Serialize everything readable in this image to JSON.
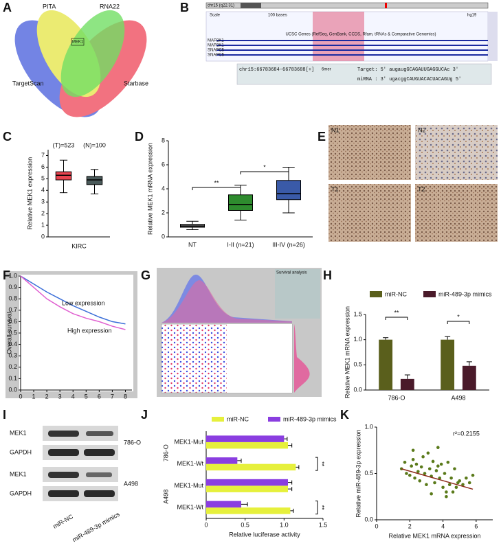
{
  "panel_labels": [
    "A",
    "B",
    "C",
    "D",
    "E",
    "F",
    "G",
    "H",
    "I",
    "J",
    "K"
  ],
  "venn": {
    "labels": [
      "PITA",
      "RNA22",
      "TargetScan",
      "Starbase"
    ],
    "highlight": "MEK1"
  },
  "genome": {
    "band": "chr15 (q22.31)",
    "scale": "Scale",
    "span": "100 bases",
    "assembly": "hg19",
    "track": "UCSC Genes (RefSeq, GenBank, CCDS, Rfam, tRNAs & Comparative Genomics)",
    "genes": [
      "MAP2K1",
      "MAP2K1",
      "SNAPC5",
      "SNAPC5"
    ],
    "site": "chr15:66783684-66783688[+]",
    "seed": "6mer",
    "target": "Target: 5' augaugGCAGAUUGAGGUCAc 3'",
    "mirna": "miRNA : 3' ugacggCAUGUACACUACAGUg 5'"
  },
  "ihc": {
    "labels": [
      "N1",
      "N2",
      "T1",
      "T2"
    ]
  },
  "survival_panel": {
    "title": "Survival analysis"
  },
  "western": {
    "proteins": [
      "MEK1",
      "GAPDH",
      "MEK1",
      "GAPDH"
    ],
    "cell_lines": [
      "786-O",
      "A498"
    ],
    "lanes": [
      "miR-NC",
      "miR-489-3p mimics"
    ]
  },
  "chart_data": [
    {
      "type": "box",
      "categories": [
        "(T)=523",
        "(N)=100"
      ],
      "category_labels": "top",
      "xlabel": "KIRC",
      "ylabel": "Relative MEK1 expression",
      "colors": [
        "#e8434f",
        "#4a5a5a"
      ],
      "boxes": [
        {
          "min": 3.8,
          "q1": 4.9,
          "median": 5.3,
          "q3": 5.6,
          "max": 6.6
        },
        {
          "min": 3.7,
          "q1": 4.5,
          "median": 4.9,
          "q3": 5.2,
          "max": 5.8
        }
      ],
      "ylim": [
        0,
        7.5
      ],
      "yticks": [
        0,
        1,
        2,
        3,
        4,
        5,
        6,
        7
      ]
    },
    {
      "type": "box",
      "categories": [
        "NT",
        "I-II (n=21)",
        "III-IV (n=26)"
      ],
      "category_labels": "bottom",
      "ylabel": "Relative MEK1 mRNA expression",
      "colors": [
        "#7f7f7f",
        "#2e8b2e",
        "#3a5aa8"
      ],
      "boxes": [
        {
          "min": 0.6,
          "q1": 0.8,
          "median": 0.9,
          "q3": 1.05,
          "max": 1.3
        },
        {
          "min": 1.4,
          "q1": 2.2,
          "median": 2.7,
          "q3": 3.5,
          "max": 4.3
        },
        {
          "min": 2.0,
          "q1": 3.1,
          "median": 3.6,
          "q3": 4.7,
          "max": 5.8
        }
      ],
      "annotations": [
        "**",
        "*"
      ],
      "ylim": [
        0,
        8
      ],
      "yticks": [
        0,
        2,
        4,
        6,
        8
      ]
    },
    {
      "type": "line",
      "ylabel": "Overall survival",
      "x": [
        0,
        1,
        2,
        3,
        4,
        5,
        6,
        7,
        8
      ],
      "series": [
        {
          "name": "Low expression",
          "color": "#3a6ed8",
          "values": [
            1,
            0.93,
            0.86,
            0.8,
            0.74,
            0.69,
            0.64,
            0.6,
            0.58
          ]
        },
        {
          "name": "High expression",
          "color": "#e060d0",
          "values": [
            1,
            0.9,
            0.8,
            0.73,
            0.67,
            0.63,
            0.6,
            0.56,
            0.53
          ]
        }
      ],
      "legend": "inline",
      "xlim": [
        0,
        8.5
      ],
      "xticks": [
        0,
        1,
        2,
        3,
        4,
        5,
        6,
        7,
        8
      ],
      "ylim": [
        0,
        1
      ],
      "yticks": [
        {
          "value": 0,
          "label": "0.0"
        },
        0.1,
        0.2,
        0.3,
        0.4,
        0.5,
        0.6,
        0.7,
        0.8,
        0.9,
        {
          "value": 1,
          "label": "1.0"
        }
      ]
    },
    {
      "type": "bar",
      "categories": [
        "786-O",
        "A498"
      ],
      "ylabel": "Relative MEK1 mRNA expression",
      "series": [
        {
          "name": "miR-NC",
          "color": "#5a5f1c",
          "values": [
            1.0,
            1.0
          ],
          "errors": [
            0.04,
            0.06
          ]
        },
        {
          "name": "miR-489-3p mimics",
          "color": "#4a1a2a",
          "values": [
            0.22,
            0.48
          ],
          "errors": [
            0.08,
            0.08
          ]
        }
      ],
      "annotations": [
        "**",
        "*"
      ],
      "legend": "top",
      "ylim": [
        0,
        1.5
      ],
      "yticks": [
        {
          "value": 0,
          "label": "0.0"
        },
        0.5,
        {
          "value": 1,
          "label": "1.0"
        },
        1.5
      ]
    },
    {
      "type": "hbar",
      "categories": [
        "MEK1-Mut",
        "MEK1-Wt",
        "MEK1-Mut",
        "MEK1-Wt"
      ],
      "groups": [
        "786-O",
        "A498"
      ],
      "xlabel": "Relative luciferase activity",
      "series": [
        {
          "name": "miR-NC",
          "color": "#e6f03c",
          "values": [
            1.05,
            1.15,
            1.05,
            1.08
          ],
          "errors": [
            0.05,
            0.04,
            0.05,
            0.04
          ]
        },
        {
          "name": "miR-489-3p mimics",
          "color": "#8a3ee0",
          "values": [
            1.0,
            0.4,
            1.05,
            0.45
          ],
          "errors": [
            0.04,
            0.05,
            0.05,
            0.08
          ]
        }
      ],
      "annotations": [
        "**",
        "**"
      ],
      "legend": "top",
      "xlim": [
        0,
        1.5
      ],
      "xticks": [
        0,
        0.5,
        {
          "value": 1,
          "label": "1.0"
        },
        1.5
      ]
    },
    {
      "type": "scatter",
      "xlabel": "Relative MEK1 mRNA expression",
      "ylabel": "Relative miR-489-3p expression",
      "color": "#5a7a1a",
      "fit_color": "#8b2a1a",
      "annotation": "r²=0.2155",
      "x": [
        1.5,
        1.7,
        1.8,
        2.0,
        2.1,
        2.2,
        2.3,
        2.4,
        2.5,
        2.6,
        2.7,
        2.8,
        2.9,
        3.0,
        3.1,
        3.2,
        3.3,
        3.4,
        3.5,
        3.6,
        3.7,
        3.8,
        3.9,
        4.0,
        4.1,
        4.2,
        4.3,
        4.4,
        4.5,
        4.6,
        4.7,
        4.8,
        4.9,
        5.0,
        5.2,
        5.4,
        5.6,
        5.8,
        2.2,
        3.3,
        3.7,
        4.2
      ],
      "values": [
        0.55,
        0.62,
        0.5,
        0.48,
        0.58,
        0.65,
        0.45,
        0.6,
        0.52,
        0.42,
        0.57,
        0.68,
        0.5,
        0.38,
        0.72,
        0.55,
        0.47,
        0.63,
        0.4,
        0.53,
        0.78,
        0.45,
        0.6,
        0.35,
        0.5,
        0.3,
        0.62,
        0.38,
        0.45,
        0.3,
        0.55,
        0.35,
        0.4,
        0.42,
        0.38,
        0.45,
        0.4,
        0.48,
        0.75,
        0.28,
        0.58,
        0.25
      ],
      "fit_x": [
        1.5,
        5.8
      ],
      "fit_values": [
        0.55,
        0.33
      ],
      "xlim": [
        0,
        7
      ],
      "xticks": [
        0,
        2,
        4,
        6
      ],
      "ylim": [
        0,
        1
      ],
      "yticks": [
        {
          "value": 0,
          "label": "0.0"
        },
        0.5,
        {
          "value": 1,
          "label": "1.0"
        }
      ]
    }
  ]
}
